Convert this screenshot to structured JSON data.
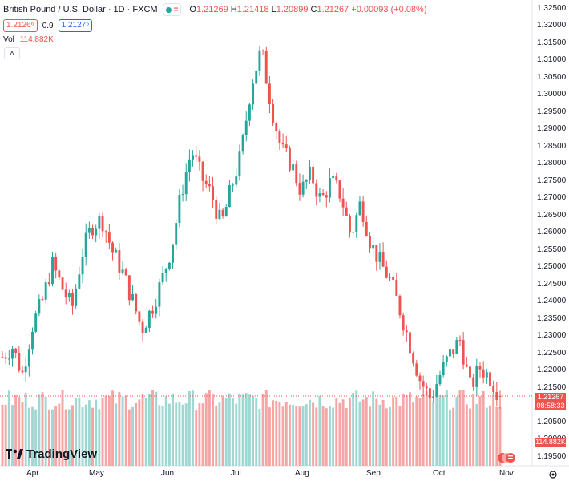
{
  "header": {
    "title": "British Pound / U.S. Dollar · 1D · FXCM",
    "ohlc": {
      "o_label": "O",
      "o": "1.21269",
      "h_label": "H",
      "h": "1.21418",
      "l_label": "L",
      "l": "1.20899",
      "c_label": "C",
      "c": "1.21267",
      "change": "+0.00093 (+0.08%)"
    },
    "sell_price": "1.2126⁶",
    "spread": "0.9",
    "buy_price": "1.2127⁵",
    "vol_label": "Vol",
    "vol_value": "114.882K",
    "collapse_glyph": "˄"
  },
  "price_axis": {
    "labels": [
      "1.32500",
      "1.32000",
      "1.31500",
      "1.31000",
      "1.30500",
      "1.30000",
      "1.29500",
      "1.29000",
      "1.28500",
      "1.28000",
      "1.27500",
      "1.27000",
      "1.26500",
      "1.26000",
      "1.25500",
      "1.25000",
      "1.24500",
      "1.24000",
      "1.23500",
      "1.23000",
      "1.22500",
      "1.22000",
      "1.21500",
      "1.21000",
      "1.20500",
      "1.20000",
      "1.19500"
    ],
    "current_price": "1.21267",
    "countdown": "08:58:33",
    "volume_tag": "114.882K"
  },
  "time_axis": {
    "labels": [
      "Apr",
      "May",
      "Jun",
      "Jul",
      "Aug",
      "Sep",
      "Oct",
      "Nov"
    ]
  },
  "logo": {
    "text": "TradingView"
  },
  "colors": {
    "up": "#26a69a",
    "down": "#ef5350",
    "up_vol": "#9fd8d2",
    "down_vol": "#f5a5a3",
    "price_line": "#ef5350"
  },
  "chart_data": {
    "type": "candlestick",
    "symbol": "British Pound / U.S. Dollar",
    "interval": "1D",
    "ylim": [
      1.195,
      1.325
    ],
    "x": [
      "Apr",
      "May",
      "Jun",
      "Jul",
      "Aug",
      "Sep",
      "Oct",
      "Nov"
    ],
    "close_path": [
      1.224,
      1.227,
      1.219,
      1.233,
      1.24,
      1.251,
      1.244,
      1.238,
      1.254,
      1.262,
      1.264,
      1.255,
      1.249,
      1.241,
      1.232,
      1.238,
      1.246,
      1.256,
      1.272,
      1.284,
      1.276,
      1.271,
      1.262,
      1.273,
      1.283,
      1.303,
      1.313,
      1.297,
      1.284,
      1.28,
      1.272,
      1.277,
      1.269,
      1.275,
      1.271,
      1.259,
      1.269,
      1.257,
      1.251,
      1.246,
      1.237,
      1.227,
      1.217,
      1.212,
      1.219,
      1.225,
      1.229,
      1.215,
      1.221,
      1.218,
      1.2127
    ],
    "last": {
      "open": 1.21269,
      "high": 1.21418,
      "low": 1.20899,
      "close": 1.21267,
      "volume": "114.882K"
    }
  }
}
